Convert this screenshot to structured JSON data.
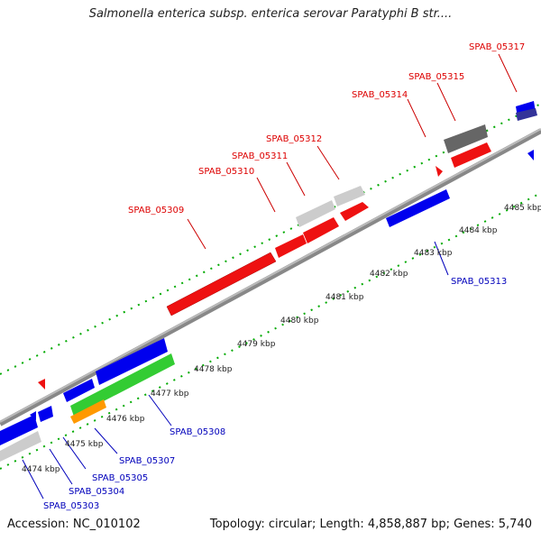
{
  "title": "Salmonella enterica subsp. enterica serovar Paratyphi B str....",
  "accession_text": "Accession: NC_010102",
  "summary_text": "Topology: circular; Length: 4,858,887 bp; Genes: 5,740",
  "ruler": {
    "tick_labels": [
      "4474 kbp",
      "4475 kbp",
      "4476 kbp",
      "4477 kbp",
      "4478 kbp",
      "4479 kbp",
      "4480 kbp",
      "4481 kbp",
      "4482 kbp",
      "4483 kbp",
      "4484 kbp",
      "4485 kbp"
    ]
  },
  "colors": {
    "forward_label": "#dd0000",
    "reverse_label": "#0000bb",
    "red_feature": "#ff0000",
    "blue_feature": "#0000ee",
    "green_feature": "#33cc33",
    "orange_feature": "#ff9900",
    "gray_feature": "#cccccc",
    "dark_gray_feature": "#666666",
    "backbone": "#888888",
    "tick_green": "#009900"
  },
  "genes": {
    "top": [
      "SPAB_05309",
      "SPAB_05310",
      "SPAB_05311",
      "SPAB_05312",
      "SPAB_05314",
      "SPAB_05315",
      "SPAB_05317"
    ],
    "bottom": [
      "SPAB_05303",
      "SPAB_05304",
      "SPAB_05305",
      "SPAB_05307",
      "SPAB_05308",
      "SPAB_05313"
    ]
  }
}
